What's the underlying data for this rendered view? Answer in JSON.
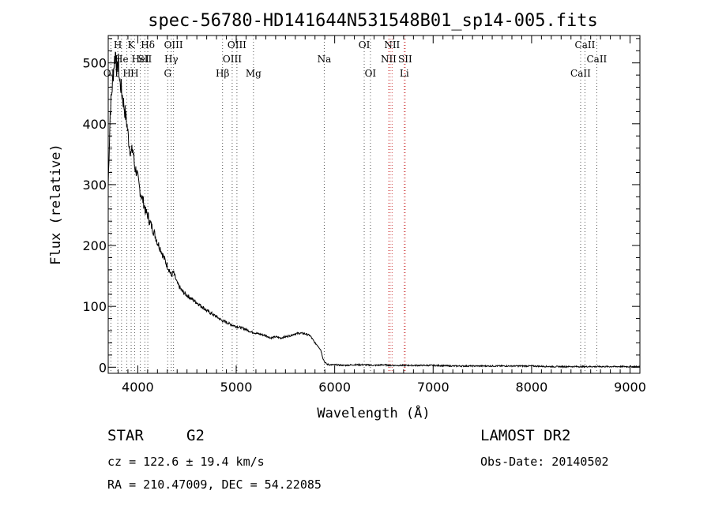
{
  "chart_data": {
    "type": "line",
    "title": "spec-56780-HD141644N531548B01_sp14-005.fits",
    "xlabel": "Wavelength (Å)",
    "ylabel": "Flux (relative)",
    "xlim": [
      3700,
      9100
    ],
    "ylim": [
      -10,
      545
    ],
    "x_ticks": [
      4000,
      5000,
      6000,
      7000,
      8000,
      9000
    ],
    "y_ticks": [
      0,
      100,
      200,
      300,
      400,
      500
    ],
    "grid": false,
    "series": [
      {
        "x": [
          3700,
          3720,
          3740,
          3760,
          3775,
          3790,
          3800,
          3815,
          3830,
          3850,
          3870,
          3890,
          3910,
          3933,
          3950,
          3968,
          3990,
          4010,
          4030,
          4060,
          4080,
          4102,
          4120,
          4150,
          4180,
          4200,
          4230,
          4260,
          4290,
          4320,
          4340,
          4360,
          4380,
          4400,
          4450,
          4500,
          4550,
          4600,
          4650,
          4700,
          4750,
          4800,
          4861,
          4900,
          4950,
          5000,
          5050,
          5100,
          5150,
          5200,
          5250,
          5300,
          5350,
          5400,
          5450,
          5500,
          5550,
          5600,
          5650,
          5700,
          5750,
          5800,
          5830,
          5860,
          5880,
          5900,
          5920,
          5950,
          6000,
          6100,
          6200,
          6300,
          6400,
          6500,
          6563,
          6600,
          6700,
          6800,
          6900,
          7000,
          7200,
          7400,
          7600,
          7800,
          8000,
          8200,
          8400,
          8600,
          8800,
          9000,
          9100
        ],
        "y": [
          300,
          420,
          460,
          500,
          520,
          480,
          510,
          470,
          460,
          440,
          420,
          400,
          370,
          350,
          360,
          330,
          320,
          300,
          285,
          270,
          255,
          250,
          240,
          228,
          215,
          205,
          195,
          182,
          170,
          160,
          150,
          156,
          148,
          138,
          125,
          118,
          112,
          106,
          100,
          93,
          88,
          83,
          76,
          74,
          70,
          67,
          65,
          62,
          58,
          56,
          54,
          52,
          48,
          50,
          48,
          50,
          52,
          55,
          56,
          55,
          52,
          40,
          35,
          28,
          15,
          8,
          5,
          4,
          4,
          3,
          4,
          4,
          3,
          4,
          3,
          3,
          3,
          3,
          3,
          3,
          2,
          2,
          2,
          2,
          2,
          1,
          1,
          1,
          1,
          1,
          1
        ]
      }
    ],
    "spectral_lines": [
      {
        "wavelength": 3727,
        "label": "OII",
        "row": 3,
        "color": "#555555"
      },
      {
        "wavelength": 3797,
        "label": "H",
        "row": 1,
        "color": "#555555"
      },
      {
        "wavelength": 3835,
        "label": "He",
        "row": 2,
        "color": "#555555"
      },
      {
        "wavelength": 3889,
        "label": "H",
        "row": 3,
        "color": "#555555"
      },
      {
        "wavelength": 3933,
        "label": "K",
        "row": 1,
        "color": "#555555"
      },
      {
        "wavelength": 3968,
        "label": "H",
        "row": 3,
        "color": "#555555"
      },
      {
        "wavelength": 4026,
        "label": "HeI",
        "row": 2,
        "color": "#555555"
      },
      {
        "wavelength": 4072,
        "label": "SII",
        "row": 2,
        "color": "#555555"
      },
      {
        "wavelength": 4102,
        "label": "Hδ",
        "row": 1,
        "color": "#555555"
      },
      {
        "wavelength": 4304,
        "label": "G",
        "row": 3,
        "color": "#555555"
      },
      {
        "wavelength": 4340,
        "label": "Hγ",
        "row": 2,
        "color": "#555555"
      },
      {
        "wavelength": 4363,
        "label": "OIII",
        "row": 1,
        "color": "#555555"
      },
      {
        "wavelength": 4861,
        "label": "Hβ",
        "row": 3,
        "color": "#555555"
      },
      {
        "wavelength": 4959,
        "label": "OIII",
        "row": 2,
        "color": "#555555"
      },
      {
        "wavelength": 5007,
        "label": "OIII",
        "row": 1,
        "color": "#555555"
      },
      {
        "wavelength": 5175,
        "label": "Mg",
        "row": 3,
        "color": "#555555"
      },
      {
        "wavelength": 5894,
        "label": "Na",
        "row": 2,
        "color": "#555555"
      },
      {
        "wavelength": 6300,
        "label": "OI",
        "row": 1,
        "color": "#555555"
      },
      {
        "wavelength": 6363,
        "label": "OI",
        "row": 3,
        "color": "#555555"
      },
      {
        "wavelength": 6548,
        "label": "NII",
        "row": 2,
        "color": "#d04040"
      },
      {
        "wavelength": 6563,
        "label": "",
        "row": 0,
        "color": "#d04040"
      },
      {
        "wavelength": 6583,
        "label": "NII",
        "row": 1,
        "color": "#d04040"
      },
      {
        "wavelength": 6707,
        "label": "Li",
        "row": 3,
        "color": "#d04040"
      },
      {
        "wavelength": 6716,
        "label": "SII",
        "row": 2,
        "color": "#d04040"
      },
      {
        "wavelength": 8498,
        "label": "CaII",
        "row": 3,
        "color": "#555555"
      },
      {
        "wavelength": 8542,
        "label": "CaII",
        "row": 1,
        "color": "#555555"
      },
      {
        "wavelength": 8662,
        "label": "CaII",
        "row": 2,
        "color": "#555555"
      }
    ]
  },
  "info": {
    "object_class": "STAR",
    "subclass": "G2",
    "survey": "LAMOST DR2",
    "cz": "cz = 122.6 ± 19.4 km/s",
    "obs_date": "Obs-Date: 20140502",
    "coords": "RA = 210.47009, DEC =  54.22085"
  }
}
